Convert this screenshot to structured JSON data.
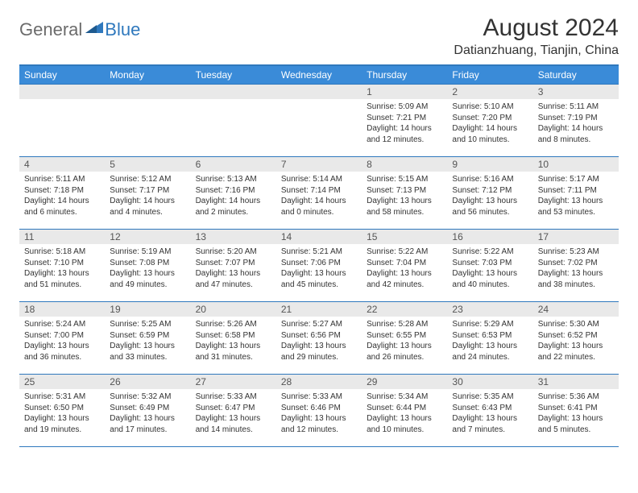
{
  "brand": {
    "part_a": "General",
    "part_b": "Blue",
    "accent_color": "#2f78bd"
  },
  "title": "August 2024",
  "location": "Datianzhuang, Tianjin, China",
  "weekday_header_bg": "#3a8bd8",
  "weekdays": [
    "Sunday",
    "Monday",
    "Tuesday",
    "Wednesday",
    "Thursday",
    "Friday",
    "Saturday"
  ],
  "weeks": [
    [
      {
        "n": "",
        "sr": "",
        "ss": "",
        "dl": ""
      },
      {
        "n": "",
        "sr": "",
        "ss": "",
        "dl": ""
      },
      {
        "n": "",
        "sr": "",
        "ss": "",
        "dl": ""
      },
      {
        "n": "",
        "sr": "",
        "ss": "",
        "dl": ""
      },
      {
        "n": "1",
        "sr": "Sunrise: 5:09 AM",
        "ss": "Sunset: 7:21 PM",
        "dl": "Daylight: 14 hours and 12 minutes."
      },
      {
        "n": "2",
        "sr": "Sunrise: 5:10 AM",
        "ss": "Sunset: 7:20 PM",
        "dl": "Daylight: 14 hours and 10 minutes."
      },
      {
        "n": "3",
        "sr": "Sunrise: 5:11 AM",
        "ss": "Sunset: 7:19 PM",
        "dl": "Daylight: 14 hours and 8 minutes."
      }
    ],
    [
      {
        "n": "4",
        "sr": "Sunrise: 5:11 AM",
        "ss": "Sunset: 7:18 PM",
        "dl": "Daylight: 14 hours and 6 minutes."
      },
      {
        "n": "5",
        "sr": "Sunrise: 5:12 AM",
        "ss": "Sunset: 7:17 PM",
        "dl": "Daylight: 14 hours and 4 minutes."
      },
      {
        "n": "6",
        "sr": "Sunrise: 5:13 AM",
        "ss": "Sunset: 7:16 PM",
        "dl": "Daylight: 14 hours and 2 minutes."
      },
      {
        "n": "7",
        "sr": "Sunrise: 5:14 AM",
        "ss": "Sunset: 7:14 PM",
        "dl": "Daylight: 14 hours and 0 minutes."
      },
      {
        "n": "8",
        "sr": "Sunrise: 5:15 AM",
        "ss": "Sunset: 7:13 PM",
        "dl": "Daylight: 13 hours and 58 minutes."
      },
      {
        "n": "9",
        "sr": "Sunrise: 5:16 AM",
        "ss": "Sunset: 7:12 PM",
        "dl": "Daylight: 13 hours and 56 minutes."
      },
      {
        "n": "10",
        "sr": "Sunrise: 5:17 AM",
        "ss": "Sunset: 7:11 PM",
        "dl": "Daylight: 13 hours and 53 minutes."
      }
    ],
    [
      {
        "n": "11",
        "sr": "Sunrise: 5:18 AM",
        "ss": "Sunset: 7:10 PM",
        "dl": "Daylight: 13 hours and 51 minutes."
      },
      {
        "n": "12",
        "sr": "Sunrise: 5:19 AM",
        "ss": "Sunset: 7:08 PM",
        "dl": "Daylight: 13 hours and 49 minutes."
      },
      {
        "n": "13",
        "sr": "Sunrise: 5:20 AM",
        "ss": "Sunset: 7:07 PM",
        "dl": "Daylight: 13 hours and 47 minutes."
      },
      {
        "n": "14",
        "sr": "Sunrise: 5:21 AM",
        "ss": "Sunset: 7:06 PM",
        "dl": "Daylight: 13 hours and 45 minutes."
      },
      {
        "n": "15",
        "sr": "Sunrise: 5:22 AM",
        "ss": "Sunset: 7:04 PM",
        "dl": "Daylight: 13 hours and 42 minutes."
      },
      {
        "n": "16",
        "sr": "Sunrise: 5:22 AM",
        "ss": "Sunset: 7:03 PM",
        "dl": "Daylight: 13 hours and 40 minutes."
      },
      {
        "n": "17",
        "sr": "Sunrise: 5:23 AM",
        "ss": "Sunset: 7:02 PM",
        "dl": "Daylight: 13 hours and 38 minutes."
      }
    ],
    [
      {
        "n": "18",
        "sr": "Sunrise: 5:24 AM",
        "ss": "Sunset: 7:00 PM",
        "dl": "Daylight: 13 hours and 36 minutes."
      },
      {
        "n": "19",
        "sr": "Sunrise: 5:25 AM",
        "ss": "Sunset: 6:59 PM",
        "dl": "Daylight: 13 hours and 33 minutes."
      },
      {
        "n": "20",
        "sr": "Sunrise: 5:26 AM",
        "ss": "Sunset: 6:58 PM",
        "dl": "Daylight: 13 hours and 31 minutes."
      },
      {
        "n": "21",
        "sr": "Sunrise: 5:27 AM",
        "ss": "Sunset: 6:56 PM",
        "dl": "Daylight: 13 hours and 29 minutes."
      },
      {
        "n": "22",
        "sr": "Sunrise: 5:28 AM",
        "ss": "Sunset: 6:55 PM",
        "dl": "Daylight: 13 hours and 26 minutes."
      },
      {
        "n": "23",
        "sr": "Sunrise: 5:29 AM",
        "ss": "Sunset: 6:53 PM",
        "dl": "Daylight: 13 hours and 24 minutes."
      },
      {
        "n": "24",
        "sr": "Sunrise: 5:30 AM",
        "ss": "Sunset: 6:52 PM",
        "dl": "Daylight: 13 hours and 22 minutes."
      }
    ],
    [
      {
        "n": "25",
        "sr": "Sunrise: 5:31 AM",
        "ss": "Sunset: 6:50 PM",
        "dl": "Daylight: 13 hours and 19 minutes."
      },
      {
        "n": "26",
        "sr": "Sunrise: 5:32 AM",
        "ss": "Sunset: 6:49 PM",
        "dl": "Daylight: 13 hours and 17 minutes."
      },
      {
        "n": "27",
        "sr": "Sunrise: 5:33 AM",
        "ss": "Sunset: 6:47 PM",
        "dl": "Daylight: 13 hours and 14 minutes."
      },
      {
        "n": "28",
        "sr": "Sunrise: 5:33 AM",
        "ss": "Sunset: 6:46 PM",
        "dl": "Daylight: 13 hours and 12 minutes."
      },
      {
        "n": "29",
        "sr": "Sunrise: 5:34 AM",
        "ss": "Sunset: 6:44 PM",
        "dl": "Daylight: 13 hours and 10 minutes."
      },
      {
        "n": "30",
        "sr": "Sunrise: 5:35 AM",
        "ss": "Sunset: 6:43 PM",
        "dl": "Daylight: 13 hours and 7 minutes."
      },
      {
        "n": "31",
        "sr": "Sunrise: 5:36 AM",
        "ss": "Sunset: 6:41 PM",
        "dl": "Daylight: 13 hours and 5 minutes."
      }
    ]
  ]
}
